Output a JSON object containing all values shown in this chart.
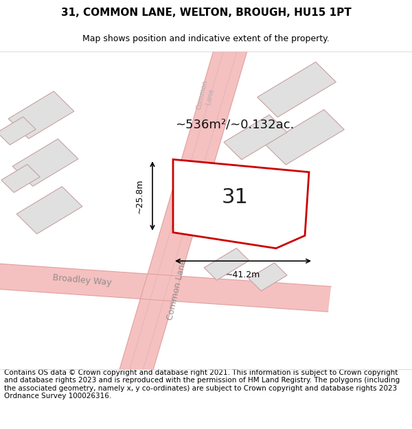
{
  "title_line1": "31, COMMON LANE, WELTON, BROUGH, HU15 1PT",
  "title_line2": "Map shows position and indicative extent of the property.",
  "footer_text": "Contains OS data © Crown copyright and database right 2021. This information is subject to Crown copyright and database rights 2023 and is reproduced with the permission of HM Land Registry. The polygons (including the associated geometry, namely x, y co-ordinates) are subject to Crown copyright and database rights 2023 Ordnance Survey 100026316.",
  "area_label": "~536m²/~0.132ac.",
  "width_label": "~41.2m",
  "height_label": "~25.8m",
  "plot_number": "31",
  "background_color": "#ffffff",
  "map_bg_color": "#ffffff",
  "road_color": "#f5c0c0",
  "building_fill": "#e8e8e8",
  "building_edge": "#d0a0a0",
  "plot_fill": "#ffffff",
  "plot_edge": "#cc0000",
  "road_line_color": "#e0a0a0",
  "street_label_color": "#888888",
  "road_label_color": "#888888",
  "dim_color": "#000000",
  "title_fontsize": 11,
  "subtitle_fontsize": 9,
  "footer_fontsize": 7.5,
  "area_fontsize": 13,
  "plot_num_fontsize": 22,
  "dim_fontsize": 9,
  "road_label_fontsize": 9,
  "common_lane_label": "Common Lane",
  "broadley_way_label": "Broadley Way",
  "common_lane_top_label": "Common\nLane"
}
